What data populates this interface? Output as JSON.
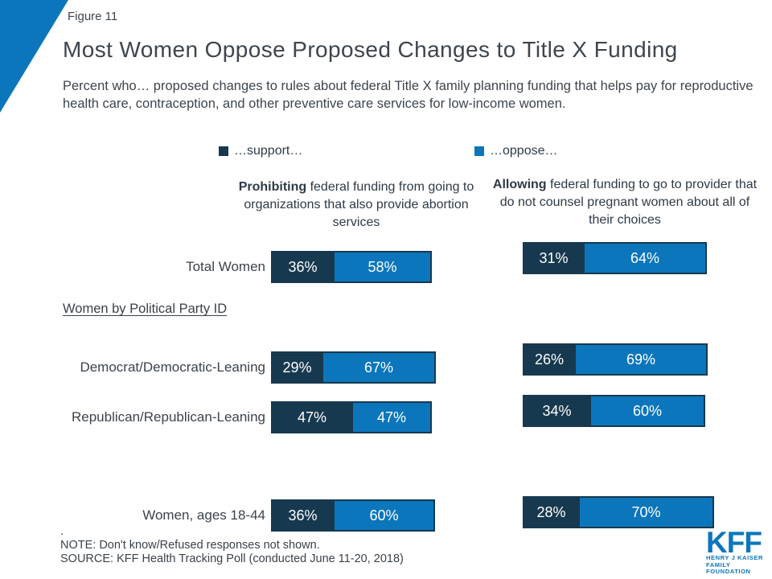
{
  "figure_label": "Figure 11",
  "title": "Most Women Oppose Proposed Changes to Title X Funding",
  "subtitle": "Percent who… proposed changes to rules about federal Title X family planning funding that helps pay for reproductive health care, contraception, and other preventive care services for low-income women.",
  "section_label": "Women by Political Party ID",
  "notes": {
    "stray": ".",
    "note": "NOTE: Don't know/Refused responses not shown.",
    "source": "SOURCE: KFF Health Tracking Poll (conducted June 11-20, 2018)"
  },
  "logo": {
    "kff": "KFF",
    "line1": "HENRY J KAISER",
    "line2": "FAMILY FOUNDATION"
  },
  "colors": {
    "blue": "#0B76BC",
    "navy": "#17394F"
  },
  "chart_data": {
    "type": "bar",
    "subtype": "horizontal-stacked-paired",
    "unit": "%",
    "title": "Most Women Oppose Proposed Changes to Title X Funding",
    "legend": [
      {
        "name": "support",
        "label": "…support…",
        "color": "#17394F"
      },
      {
        "name": "oppose",
        "label": "…oppose…",
        "color": "#0B76BC"
      }
    ],
    "columns": [
      {
        "bold": "Prohibiting",
        "rest": " federal funding from going to organizations that also provide abortion services"
      },
      {
        "bold": "Allowing",
        "rest": " federal funding to go to provider that do not counsel pregnant women about all of their choices"
      }
    ],
    "rows": [
      {
        "label": "Total Women",
        "values": {
          "prohibiting": {
            "support": 36,
            "oppose": 58
          },
          "allowing": {
            "support": 31,
            "oppose": 64
          }
        }
      },
      {
        "label": "Democrat/Democratic-Leaning",
        "values": {
          "prohibiting": {
            "support": 29,
            "oppose": 67
          },
          "allowing": {
            "support": 26,
            "oppose": 69
          }
        }
      },
      {
        "label": "Republican/Republican-Leaning",
        "values": {
          "prohibiting": {
            "support": 47,
            "oppose": 47
          },
          "allowing": {
            "support": 34,
            "oppose": 60
          }
        }
      },
      {
        "label": "Women, ages 18-44",
        "values": {
          "prohibiting": {
            "support": 36,
            "oppose": 60
          },
          "allowing": {
            "support": 28,
            "oppose": 70
          }
        }
      }
    ]
  }
}
